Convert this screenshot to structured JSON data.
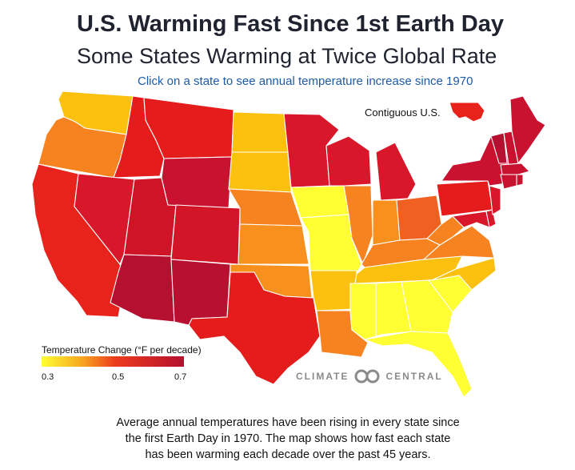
{
  "title": "U.S. Warming Fast Since 1st Earth Day",
  "subtitle": "Some States Warming at Twice Global Rate",
  "hint": "Click on a state to see annual temperature increase since 1970",
  "contiguous_label": "Contiguous U.S.",
  "legend": {
    "title": "Temperature Change (°F per decade)",
    "ticks": [
      "0.3",
      "0.5",
      "0.7"
    ],
    "colors": [
      "#ffff33",
      "#f7a820",
      "#ec3b1c",
      "#b5102f"
    ]
  },
  "logo": {
    "left_text": "CLIMATE",
    "right_text": "CENTRAL"
  },
  "caption_lines": [
    "Average annual temperatures have been rising in every state since",
    "the first Earth Day in 1970. The map shows how fast each state",
    "has been warming each decade over the past 45 years."
  ],
  "colors": {
    "wa": "#fcc10f",
    "or": "#f78320",
    "ca": "#e8231b",
    "id": "#e41c1c",
    "nv": "#d8172a",
    "mt": "#e41c1c",
    "wy": "#c81230",
    "ut": "#d01428",
    "az": "#b5102f",
    "co": "#d21628",
    "nm": "#b81030",
    "nd": "#fcc10f",
    "sd": "#fcc10f",
    "ne": "#f78320",
    "ks": "#f7901c",
    "ok": "#f7901c",
    "tx": "#e41c1c",
    "mn": "#d8172a",
    "ia": "#ffff33",
    "mo": "#ffff33",
    "ar": "#fcc10f",
    "la": "#f78320",
    "wi": "#d8172a",
    "il": "#f78320",
    "mi": "#d8172a",
    "in": "#f7901c",
    "oh": "#f06020",
    "ky": "#f78320",
    "tn": "#fcc10f",
    "ms": "#ffff33",
    "al": "#ffff33",
    "ga": "#ffff33",
    "fl": "#ffff33",
    "sc": "#ffff33",
    "nc": "#fcc10f",
    "va": "#f78320",
    "wv": "#f78320",
    "pa": "#e41c1c",
    "ny": "#c81230",
    "vt": "#b5102f",
    "nh": "#c81230",
    "me": "#c81230",
    "ma": "#c81230",
    "ct": "#c81230",
    "ri": "#c81230",
    "nj": "#d8172a",
    "md": "#d8172a",
    "de": "#d8172a",
    "us": "#e8231b"
  }
}
